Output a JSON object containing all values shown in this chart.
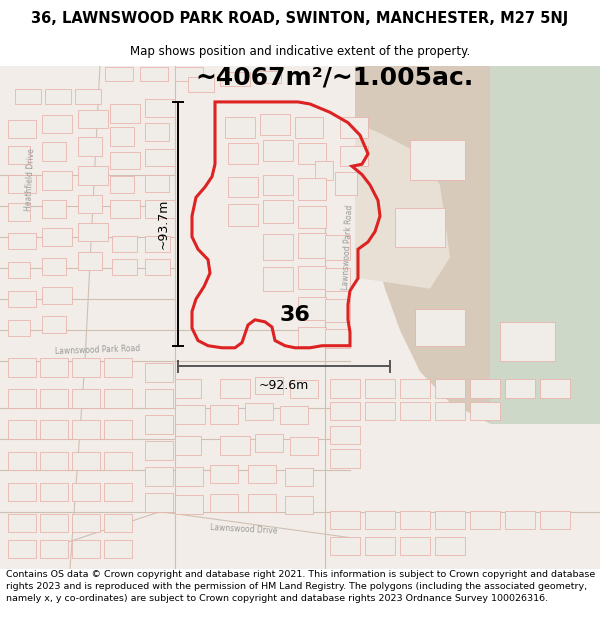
{
  "title_line1": "36, LAWNSWOOD PARK ROAD, SWINTON, MANCHESTER, M27 5NJ",
  "title_line2": "Map shows position and indicative extent of the property.",
  "area_text": "~4067m²/~1.005ac.",
  "label_36": "36",
  "label_height": "~93.7m",
  "label_width": "~92.6m",
  "footer_text": "Contains OS data © Crown copyright and database right 2021. This information is subject to Crown copyright and database rights 2023 and is reproduced with the permission of HM Land Registry. The polygons (including the associated geometry, namely x, y co-ordinates) are subject to Crown copyright and database rights 2023 Ordnance Survey 100026316.",
  "map_bg": "#f2ede8",
  "road_color": "#d4c8be",
  "building_fill": "#f0ece8",
  "building_edge": "#e8b0a8",
  "red_property": "#dd2222",
  "tan_area": "#d8cabb",
  "green_area": "#ccd8cc",
  "title_fontsize": 10.5,
  "subtitle_fontsize": 8.5,
  "footer_fontsize": 6.8,
  "dim_fontsize": 9,
  "area_fontsize": 18,
  "label36_fontsize": 16,
  "road_label_color": "#999999",
  "road_label_size": 5.5
}
